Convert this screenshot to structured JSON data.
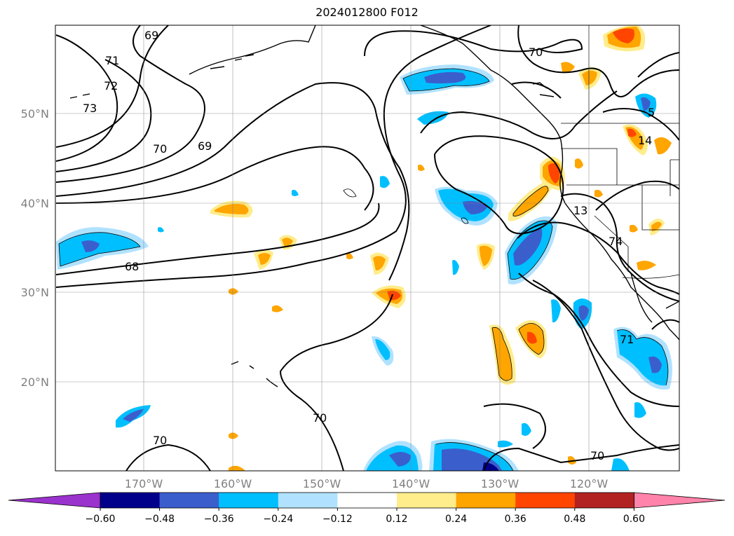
{
  "title": "2024012800 F012",
  "lat_labels": [
    "50°N",
    "40°N",
    "30°N",
    "20°N"
  ],
  "lon_labels": [
    "170°W",
    "160°W",
    "150°W",
    "140°W",
    "130°W",
    "120°W"
  ],
  "contour_labels": [
    "69",
    "71",
    "72",
    "73",
    "70",
    "69",
    "70",
    "68",
    "70",
    "70",
    "70",
    "13",
    "74",
    "14",
    "5",
    "71"
  ],
  "colorbar": {
    "ticks": [
      "−0.60",
      "−0.48",
      "−0.36",
      "−0.24",
      "−0.12",
      "0.12",
      "0.24",
      "0.36",
      "0.48",
      "0.60"
    ],
    "colors": [
      "#9a32cd",
      "#00008b",
      "#3a5fcd",
      "#00bfff",
      "#b0e2ff",
      "#ffffff",
      "#ffec8b",
      "#ffa500",
      "#ff4500",
      "#b22222",
      "#ff83aa"
    ]
  },
  "colors": {
    "neg_light": "#b0e2ff",
    "neg_mid": "#00bfff",
    "neg_strong": "#3a5fcd",
    "neg_max": "#00008b",
    "pos_light": "#ffec8b",
    "pos_mid": "#ffa500",
    "pos_strong": "#ff4500"
  }
}
